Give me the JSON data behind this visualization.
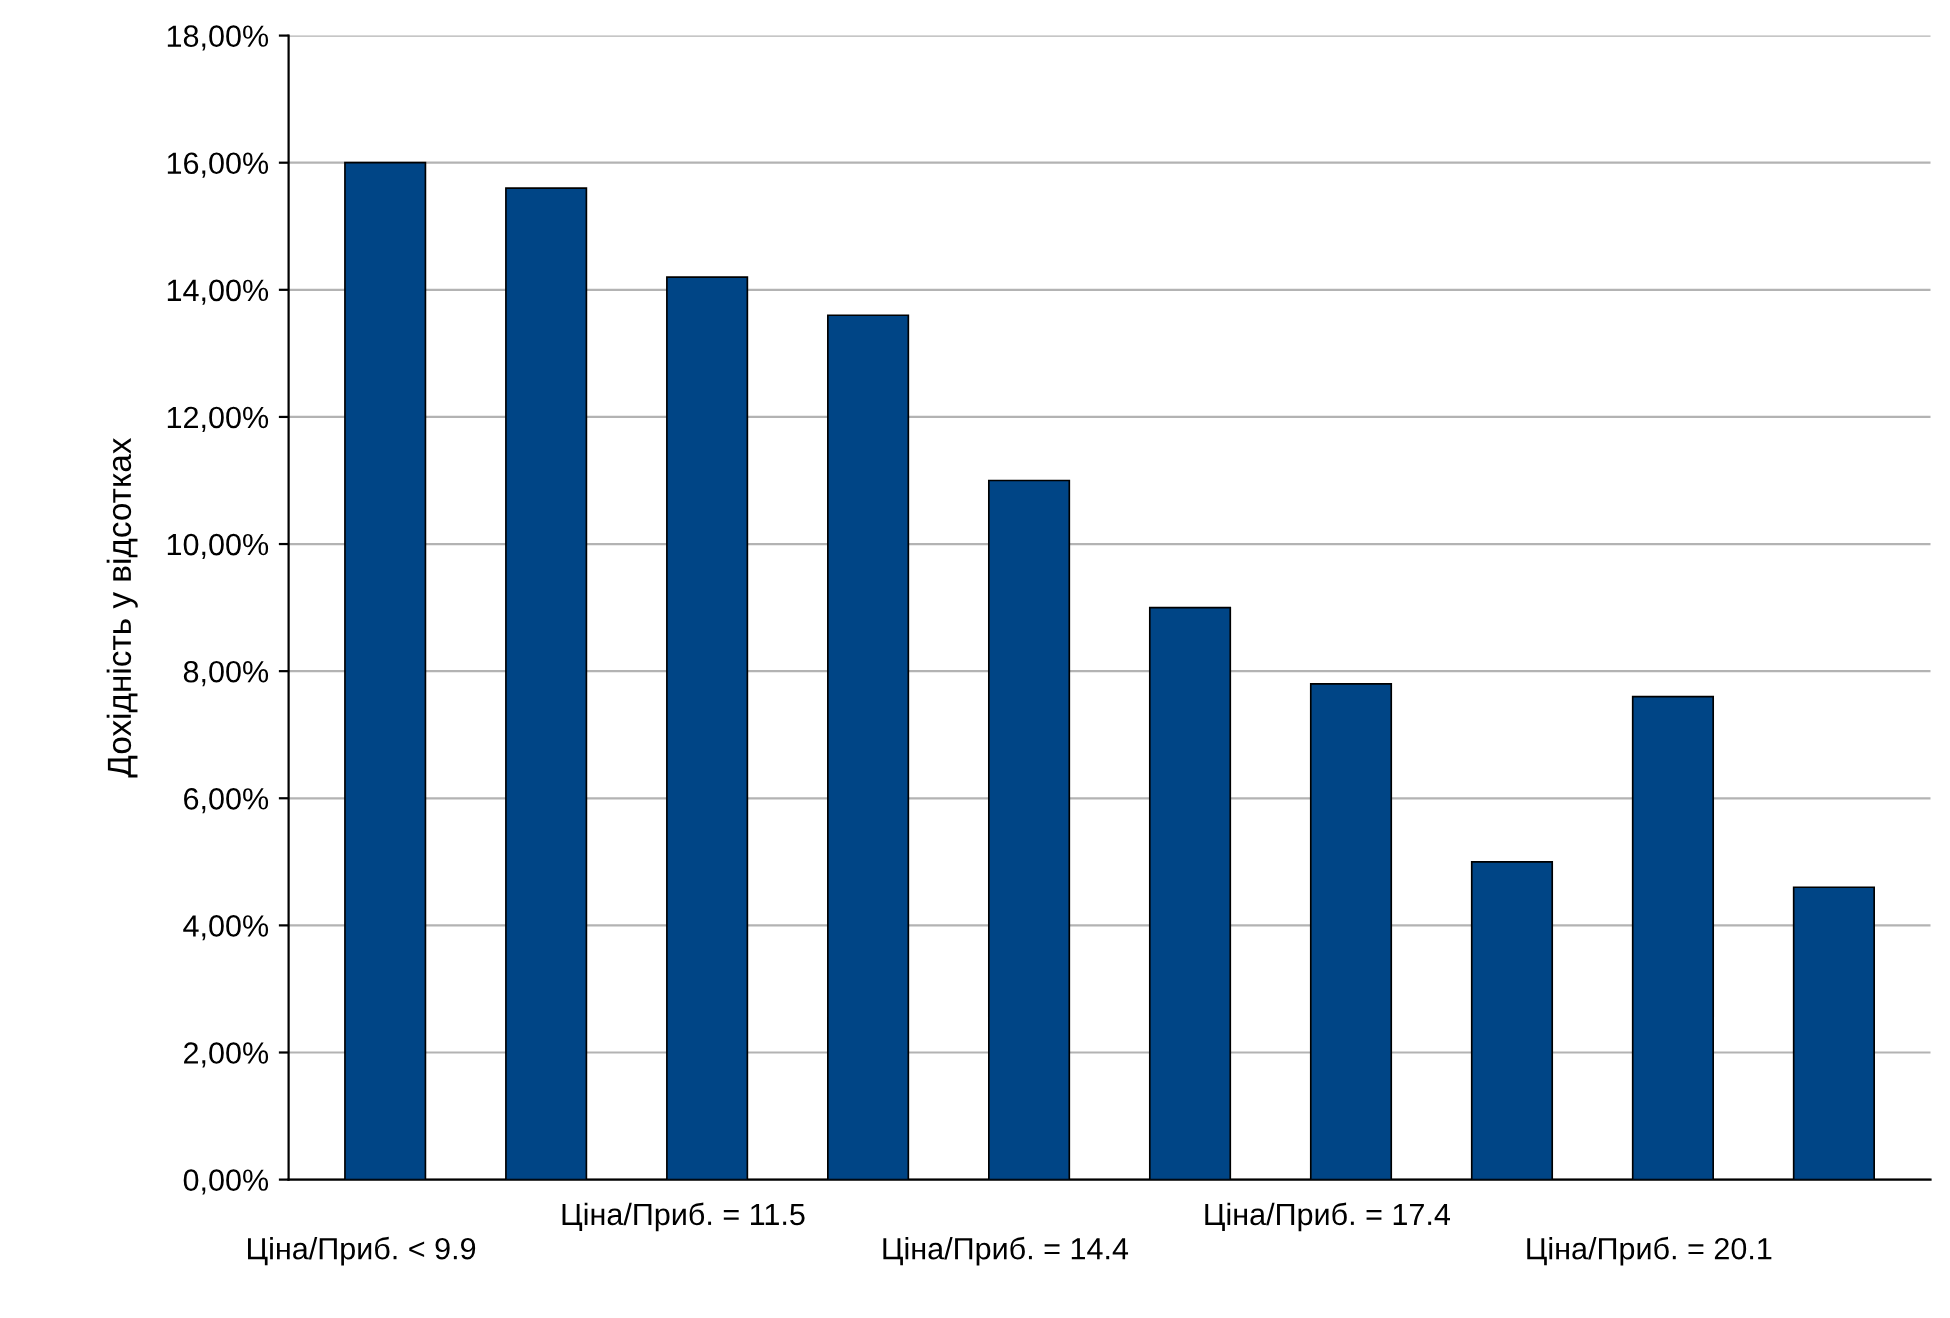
{
  "chart_data": {
    "type": "bar",
    "ylabel": "Дохідність у відсотках",
    "categories": [
      "Ціна/Приб. < 9.9",
      null,
      "Ціна/Приб. = 11.5",
      null,
      "Ціна/Приб. = 14.4",
      null,
      "Ціна/Приб. = 17.4",
      null,
      "Ціна/Приб. = 20.1",
      null
    ],
    "values": [
      16.0,
      15.6,
      14.2,
      13.6,
      11.0,
      9.0,
      7.8,
      5.0,
      7.6,
      4.6
    ],
    "color": "#004586",
    "ylim": [
      0,
      18
    ],
    "yticks": [
      {
        "value": 0,
        "label": "0,00%"
      },
      {
        "value": 2,
        "label": "2,00%"
      },
      {
        "value": 4,
        "label": "4,00%"
      },
      {
        "value": 6,
        "label": "6,00%"
      },
      {
        "value": 8,
        "label": "8,00%"
      },
      {
        "value": 10,
        "label": "10,00%"
      },
      {
        "value": 12,
        "label": "12,00%"
      },
      {
        "value": 14,
        "label": "14,00%"
      },
      {
        "value": 16,
        "label": "16,00%"
      },
      {
        "value": 18,
        "label": "18,00%"
      }
    ],
    "grid": "y",
    "legend": false
  }
}
